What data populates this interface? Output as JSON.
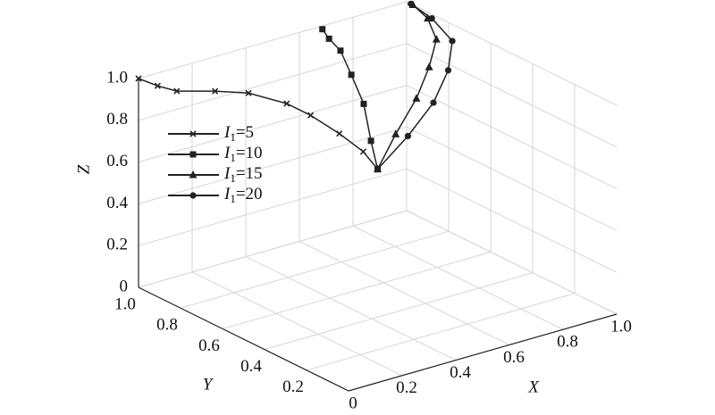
{
  "chart_data": {
    "type": "line3d",
    "xlabel": "X",
    "ylabel": "Y",
    "zlabel": "Z",
    "xlim": [
      0,
      1
    ],
    "ylim": [
      0,
      1
    ],
    "zlim": [
      0,
      1
    ],
    "xticks": [
      0,
      0.2,
      0.4,
      0.6,
      0.8,
      {
        "value": 1,
        "label": "1.0"
      }
    ],
    "yticks": [
      0.2,
      0.4,
      0.6,
      0.8,
      {
        "value": 1,
        "label": "1.0"
      }
    ],
    "zticks": [
      0,
      0.2,
      0.4,
      0.6,
      0.8,
      {
        "value": 1,
        "label": "1.0"
      }
    ],
    "grid": true,
    "legend": "upper left",
    "series": [
      {
        "name": "I1=5",
        "marker": "x",
        "color": "#222",
        "x": [
          0,
          0.04,
          0.08,
          0.16,
          0.23,
          0.31,
          0.36,
          0.42,
          0.47,
          0.5
        ],
        "y": [
          1,
          0.96,
          0.92,
          0.84,
          0.77,
          0.69,
          0.64,
          0.58,
          0.53,
          0.5
        ],
        "z": [
          1,
          0.97,
          0.95,
          0.96,
          0.96,
          0.92,
          0.87,
          0.79,
          0.71,
          0.63
        ]
      },
      {
        "name": "I1=10",
        "marker": "square",
        "color": "#222",
        "x": [
          0.67,
          0.64,
          0.62,
          0.59,
          0.55,
          0.53,
          0.5
        ],
        "y": [
          0.98,
          0.91,
          0.83,
          0.74,
          0.63,
          0.57,
          0.5
        ],
        "z": [
          1,
          1,
          0.99,
          0.93,
          0.86,
          0.72,
          0.63
        ]
      },
      {
        "name": "I1=15",
        "marker": "triangle",
        "color": "#222",
        "x": [
          1,
          1,
          0.97,
          0.88,
          0.77,
          0.63,
          0.5
        ],
        "y": [
          0.97,
          0.9,
          0.82,
          0.74,
          0.66,
          0.58,
          0.5
        ],
        "z": [
          1,
          0.97,
          0.92,
          0.86,
          0.79,
          0.71,
          0.63
        ]
      },
      {
        "name": "I1=20",
        "marker": "circle",
        "color": "#222",
        "x": [
          1,
          1,
          0.99,
          0.92,
          0.81,
          0.66,
          0.5
        ],
        "y": [
          0.98,
          0.88,
          0.77,
          0.7,
          0.63,
          0.56,
          0.5
        ],
        "z": [
          1,
          0.98,
          0.93,
          0.85,
          0.77,
          0.7,
          0.63
        ]
      }
    ]
  }
}
